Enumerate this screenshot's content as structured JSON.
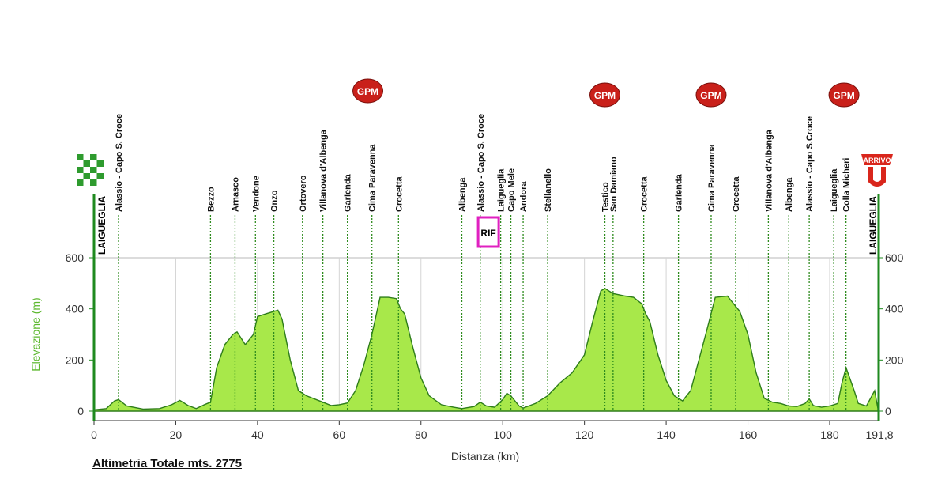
{
  "chart_data": {
    "type": "area",
    "xlabel": "Distanza (km)",
    "ylabel": "Elevazione (m)",
    "xlim": [
      0,
      191.8
    ],
    "ylim": [
      0,
      600
    ],
    "xticks": [
      0,
      20,
      40,
      60,
      80,
      100,
      120,
      140,
      160,
      180
    ],
    "xtick_labels": [
      "0",
      "20",
      "40",
      "60",
      "80",
      "100",
      "120",
      "140",
      "160",
      "180"
    ],
    "x_end_label": "191,8",
    "yticks": [
      0,
      200,
      400,
      600
    ],
    "ytick_labels": [
      "0",
      "200",
      "400",
      "600"
    ],
    "fill_color": "#a8e84a",
    "line_color": "#2e7d1a",
    "start_label": "LAIGUEGLIA",
    "finish_label": "LAIGUEGLIA",
    "arrival_badge": "ARRIVO",
    "rif_label": "RIF",
    "rif_x": 96.5,
    "gpm_label": "GPM",
    "gpm_x": [
      67,
      125,
      151,
      183.5
    ],
    "profile": {
      "x": [
        0,
        3,
        5,
        6,
        8,
        12,
        16,
        19,
        21,
        23,
        25,
        27,
        28.5,
        30,
        32,
        34,
        35,
        37,
        39,
        40,
        42,
        44,
        45,
        46,
        48,
        50,
        52,
        56,
        58,
        60,
        62,
        64,
        66,
        68,
        70,
        72,
        74,
        75,
        76,
        78,
        80,
        82,
        85,
        88,
        90,
        93,
        94.5,
        96,
        98,
        100,
        101,
        102,
        104,
        105,
        108,
        111,
        114,
        117,
        120,
        122,
        124,
        125,
        127,
        130,
        132,
        134,
        135,
        136,
        138,
        140,
        142,
        144,
        146,
        148,
        150,
        152,
        155,
        156,
        158,
        160,
        162,
        164,
        166,
        168,
        170,
        172,
        174,
        175,
        176,
        178,
        180,
        182,
        183,
        184,
        186,
        187,
        189,
        191,
        191.8
      ],
      "y": [
        5,
        10,
        40,
        45,
        20,
        8,
        10,
        25,
        42,
        22,
        10,
        25,
        35,
        170,
        260,
        300,
        310,
        260,
        300,
        370,
        380,
        390,
        395,
        360,
        200,
        80,
        60,
        35,
        22,
        25,
        32,
        80,
        180,
        300,
        445,
        445,
        440,
        400,
        380,
        250,
        130,
        60,
        25,
        15,
        10,
        18,
        35,
        20,
        15,
        45,
        70,
        60,
        20,
        12,
        30,
        60,
        110,
        150,
        220,
        350,
        470,
        480,
        460,
        450,
        445,
        420,
        380,
        350,
        220,
        120,
        60,
        40,
        80,
        200,
        320,
        445,
        450,
        430,
        390,
        300,
        150,
        50,
        35,
        30,
        20,
        18,
        30,
        48,
        22,
        15,
        20,
        30,
        110,
        170,
        80,
        30,
        20,
        80,
        10
      ]
    },
    "waypoints": [
      {
        "label": "Alassio - Capo S. Croce",
        "x": 6
      },
      {
        "label": "Bezzo",
        "x": 28.5
      },
      {
        "label": "Arnasco",
        "x": 34.5
      },
      {
        "label": "Vendone",
        "x": 39.5
      },
      {
        "label": "Onzo",
        "x": 44
      },
      {
        "label": "Ortovero",
        "x": 51
      },
      {
        "label": "Villanova d'Albenga",
        "x": 56
      },
      {
        "label": "Garlenda",
        "x": 62
      },
      {
        "label": "Cima Paravenna",
        "x": 68
      },
      {
        "label": "Crocetta",
        "x": 74.5
      },
      {
        "label": "Albenga",
        "x": 90
      },
      {
        "label": "Alassio - Capo S. Croce",
        "x": 94.5
      },
      {
        "label": "Laigueglia",
        "x": 99.5
      },
      {
        "label": "Capo Mele",
        "x": 102
      },
      {
        "label": "Andora",
        "x": 105
      },
      {
        "label": "Stellanello",
        "x": 111
      },
      {
        "label": "Testico",
        "x": 125
      },
      {
        "label": "San Damiano",
        "x": 127
      },
      {
        "label": "Crocetta",
        "x": 134.5
      },
      {
        "label": "Garlenda",
        "x": 143
      },
      {
        "label": "Cima Paravenna",
        "x": 151
      },
      {
        "label": "Crocetta",
        "x": 157
      },
      {
        "label": "Villanova d'Albenga",
        "x": 165
      },
      {
        "label": "Albenga",
        "x": 170
      },
      {
        "label": "Alassio - Capo S.Croce",
        "x": 175
      },
      {
        "label": "Laigueglia",
        "x": 181
      },
      {
        "label": "Colla Micheri",
        "x": 184
      }
    ]
  },
  "footer": {
    "total_climb": "Altimetria Totale mts. 2775"
  }
}
